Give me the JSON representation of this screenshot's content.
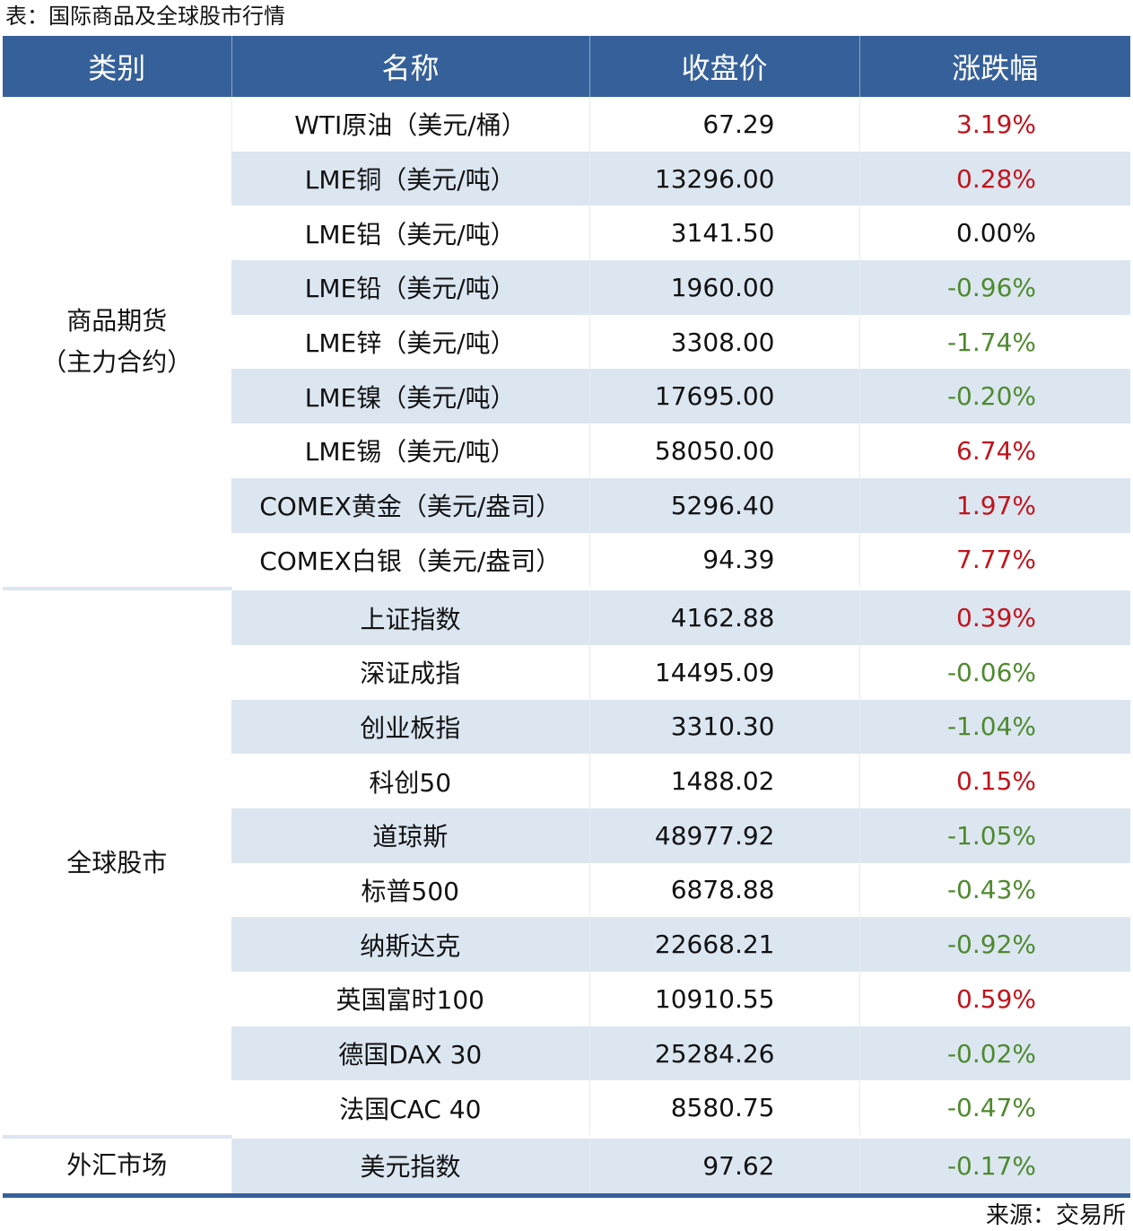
{
  "caption": "表：国际商品及全球股市行情",
  "source": "来源：交易所",
  "headers": [
    "类别",
    "名称",
    "收盘价",
    "涨跌幅"
  ],
  "colors": {
    "header_bg": "#36609a",
    "stripe": "#dce6f1",
    "up": "#c0141c",
    "down": "#4e8a2e"
  },
  "groups": [
    {
      "category": "商品期货\n（主力合约）",
      "stripe_start": false,
      "rows": [
        {
          "name": "WTI原油（美元/桶）",
          "close": "67.29",
          "change": "3.19%"
        },
        {
          "name": "LME铜（美元/吨）",
          "close": "13296.00",
          "change": "0.28%"
        },
        {
          "name": "LME铝（美元/吨）",
          "close": "3141.50",
          "change": "0.00%"
        },
        {
          "name": "LME铅（美元/吨）",
          "close": "1960.00",
          "change": "-0.96%"
        },
        {
          "name": "LME锌（美元/吨）",
          "close": "3308.00",
          "change": "-1.74%"
        },
        {
          "name": "LME镍（美元/吨）",
          "close": "17695.00",
          "change": "-0.20%"
        },
        {
          "name": "LME锡（美元/吨）",
          "close": "58050.00",
          "change": "6.74%"
        },
        {
          "name": "COMEX黄金（美元/盎司）",
          "close": "5296.40",
          "change": "1.97%"
        },
        {
          "name": "COMEX白银（美元/盎司）",
          "close": "94.39",
          "change": "7.77%"
        }
      ]
    },
    {
      "category": "全球股市",
      "stripe_start": true,
      "rows": [
        {
          "name": "上证指数",
          "close": "4162.88",
          "change": "0.39%"
        },
        {
          "name": "深证成指",
          "close": "14495.09",
          "change": "-0.06%"
        },
        {
          "name": "创业板指",
          "close": "3310.30",
          "change": "-1.04%"
        },
        {
          "name": "科创50",
          "close": "1488.02",
          "change": "0.15%"
        },
        {
          "name": "道琼斯",
          "close": "48977.92",
          "change": "-1.05%"
        },
        {
          "name": "标普500",
          "close": "6878.88",
          "change": "-0.43%"
        },
        {
          "name": "纳斯达克",
          "close": "22668.21",
          "change": "-0.92%"
        },
        {
          "name": "英国富时100",
          "close": "10910.55",
          "change": "0.59%"
        },
        {
          "name": "德国DAX 30",
          "close": "25284.26",
          "change": "-0.02%"
        },
        {
          "name": "法国CAC 40",
          "close": "8580.75",
          "change": "-0.47%"
        }
      ]
    },
    {
      "category": "外汇市场",
      "stripe_start": true,
      "rows": [
        {
          "name": "美元指数",
          "close": "97.62",
          "change": "-0.17%"
        }
      ]
    }
  ]
}
